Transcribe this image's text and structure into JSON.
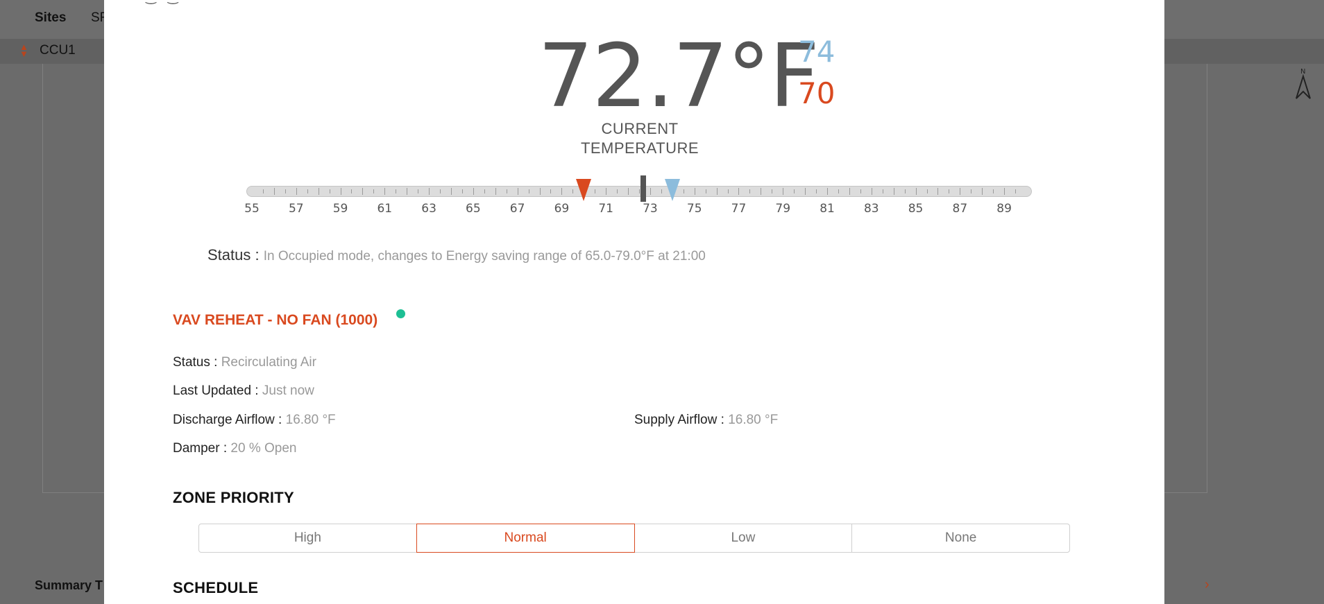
{
  "background": {
    "nav": {
      "sites_label": "Sites",
      "second_tab_label": "SF"
    },
    "ccu_selector": {
      "value": "CCU1"
    },
    "summary_label": "Summary T"
  },
  "modal": {
    "current_temperature": "72.7°F",
    "cooling_setpoint": "74",
    "heating_setpoint": "70",
    "current_label_line1": "CURRENT",
    "current_label_line2": "TEMPERATURE",
    "slider": {
      "min": 55,
      "max": 90,
      "tick_labels": [
        "55",
        "57",
        "59",
        "61",
        "63",
        "65",
        "67",
        "69",
        "71",
        "73",
        "75",
        "77",
        "79",
        "81",
        "83",
        "85",
        "87",
        "89"
      ],
      "heating_value": 70,
      "cooling_value": 74,
      "current_value": 72.7
    },
    "status": {
      "label": "Status :",
      "value": "In Occupied mode, changes to Energy saving range of 65.0-79.0°F at 21:00"
    },
    "equipment": {
      "title": "VAV REHEAT - NO FAN (1000)",
      "online_color": "#1dbf94",
      "status_label": "Status :",
      "status_value": "Recirculating Air",
      "last_updated_label": "Last Updated :",
      "last_updated_value": "Just now",
      "discharge_label": "Discharge Airflow :",
      "discharge_value": "16.80 °F",
      "supply_label": "Supply Airflow :",
      "supply_value": "16.80 °F",
      "damper_label": "Damper :",
      "damper_value": "20 % Open"
    },
    "zone_priority": {
      "title": "ZONE PRIORITY",
      "options": [
        "High",
        "Normal",
        "Low",
        "None"
      ],
      "selected": "Normal"
    },
    "schedule": {
      "title": "SCHEDULE"
    }
  },
  "colors": {
    "accent_heat": "#d9491f",
    "accent_cool": "#8cbcdc",
    "text_primary": "#555555"
  }
}
